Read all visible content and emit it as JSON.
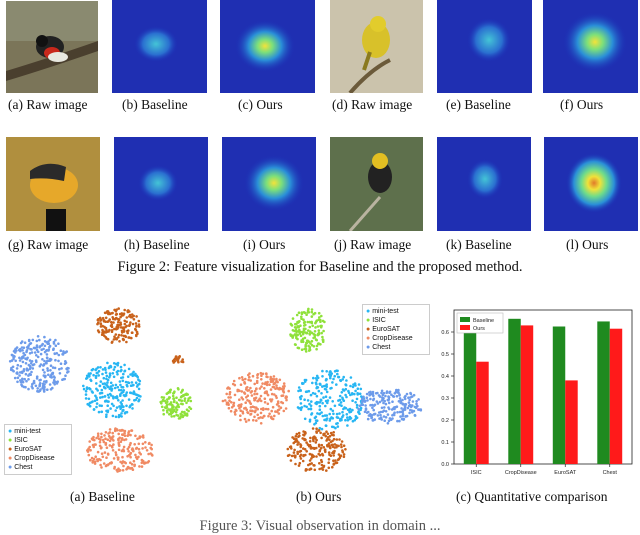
{
  "figure2": {
    "panels": [
      {
        "caption": "(a) Raw image"
      },
      {
        "caption": "(b) Baseline"
      },
      {
        "caption": "(c) Ours"
      },
      {
        "caption": "(d) Raw image"
      },
      {
        "caption": "(e) Baseline"
      },
      {
        "caption": "(f) Ours"
      },
      {
        "caption": "(g) Raw image"
      },
      {
        "caption": "(h) Baseline"
      },
      {
        "caption": "(i) Ours"
      },
      {
        "caption": "(j) Raw image"
      },
      {
        "caption": "(k) Baseline"
      },
      {
        "caption": "(l) Ours"
      }
    ],
    "caption": "Figure 2: Feature visualization for Baseline and the proposed method."
  },
  "figure3": {
    "tsne_baseline": {
      "caption": "(a) Baseline",
      "legend": [
        {
          "label": "mini-test",
          "color": "#27b6f3"
        },
        {
          "label": "ISIC",
          "color": "#8fe13a"
        },
        {
          "label": "EuroSAT",
          "color": "#c9621b"
        },
        {
          "label": "CropDisease",
          "color": "#f08a63"
        },
        {
          "label": "Chest",
          "color": "#6d9bea"
        }
      ]
    },
    "tsne_ours": {
      "caption": "(b) Ours",
      "legend": [
        {
          "label": "mini-test",
          "color": "#27b6f3"
        },
        {
          "label": "ISIC",
          "color": "#8fe13a"
        },
        {
          "label": "EuroSAT",
          "color": "#c9621b"
        },
        {
          "label": "CropDisease",
          "color": "#f08a63"
        },
        {
          "label": "Chest",
          "color": "#6d9bea"
        }
      ]
    },
    "comparison_caption": "(c) Quantitative comparison",
    "partial_caption": "Figure 3: Visual observation in domain ..."
  },
  "chart_data": {
    "type": "bar",
    "categories": [
      "ISIC",
      "CropDisease",
      "EuroSAT",
      "Chest"
    ],
    "series": [
      {
        "name": "Baseline",
        "color": "#1f8a1f",
        "values": [
          0.602,
          0.66,
          0.625,
          0.648
        ]
      },
      {
        "name": "Ours",
        "color": "#ff1a1a",
        "values": [
          0.465,
          0.63,
          0.38,
          0.615
        ]
      }
    ],
    "ylim": [
      0,
      0.7
    ],
    "yticks": [
      "0.0",
      "0.1",
      "0.2",
      "0.3",
      "0.4",
      "0.5",
      "0.6"
    ],
    "legend": "top-left"
  }
}
